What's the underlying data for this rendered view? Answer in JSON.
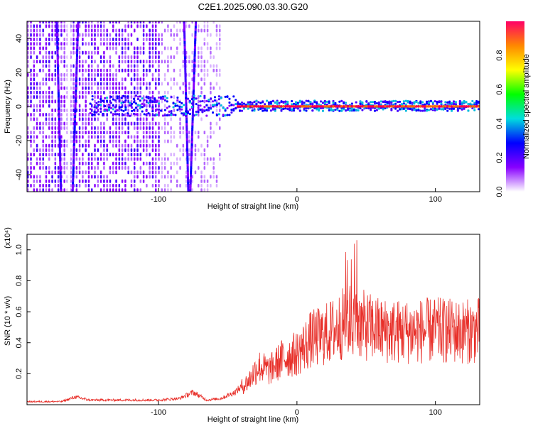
{
  "title": "C2E1.2025.090.03.30.G20",
  "colors": {
    "snr_line": "#e8302a",
    "colorbar_stops": [
      "#ffffff",
      "#8800ff",
      "#0000ff",
      "#00dddd",
      "#00ff00",
      "#ffff00",
      "#ff8800",
      "#ff0066"
    ]
  },
  "chart_data": [
    {
      "type": "heatmap",
      "xlabel": "Height of straight line (km)",
      "ylabel": "Frequency (Hz)",
      "xlim": [
        -195,
        132
      ],
      "ylim": [
        -50,
        50
      ],
      "xticks": [
        -100,
        0,
        100
      ],
      "yticks": [
        -40,
        -20,
        0,
        20,
        40
      ],
      "colorbar": {
        "label": "Normalized spectral amplitude",
        "range": [
          0,
          1
        ],
        "ticks": [
          0.0,
          0.2,
          0.4,
          0.6,
          0.8
        ]
      },
      "features": {
        "carrier_frequency_hz": 0,
        "strong_carrier_start_km": -45,
        "vertical_streaks_km": [
          -172,
          -160,
          -80,
          -75
        ],
        "noise_region_km": [
          -195,
          -55
        ]
      }
    },
    {
      "type": "line",
      "xlabel": "Height of straight line (km)",
      "ylabel": "SNR (10 * v/v)",
      "yscale_label": "(x10⁴)",
      "xlim": [
        -195,
        132
      ],
      "ylim": [
        0,
        1.1
      ],
      "xticks": [
        -100,
        0,
        100
      ],
      "yticks": [
        0.2,
        0.4,
        0.6,
        0.8,
        1.0
      ],
      "series": [
        {
          "x": [
            -195,
            -170,
            -160,
            -150,
            -120,
            -100,
            -85,
            -75,
            -65,
            -55,
            -45,
            -35,
            -28,
            -20,
            -10,
            0,
            10,
            20,
            30,
            37,
            45,
            60,
            80,
            100,
            120,
            132
          ],
          "y": [
            0.02,
            0.02,
            0.05,
            0.03,
            0.03,
            0.03,
            0.04,
            0.08,
            0.03,
            0.04,
            0.08,
            0.15,
            0.25,
            0.22,
            0.3,
            0.33,
            0.42,
            0.45,
            0.5,
            0.55,
            0.52,
            0.48,
            0.47,
            0.48,
            0.47,
            0.48
          ]
        }
      ]
    }
  ]
}
